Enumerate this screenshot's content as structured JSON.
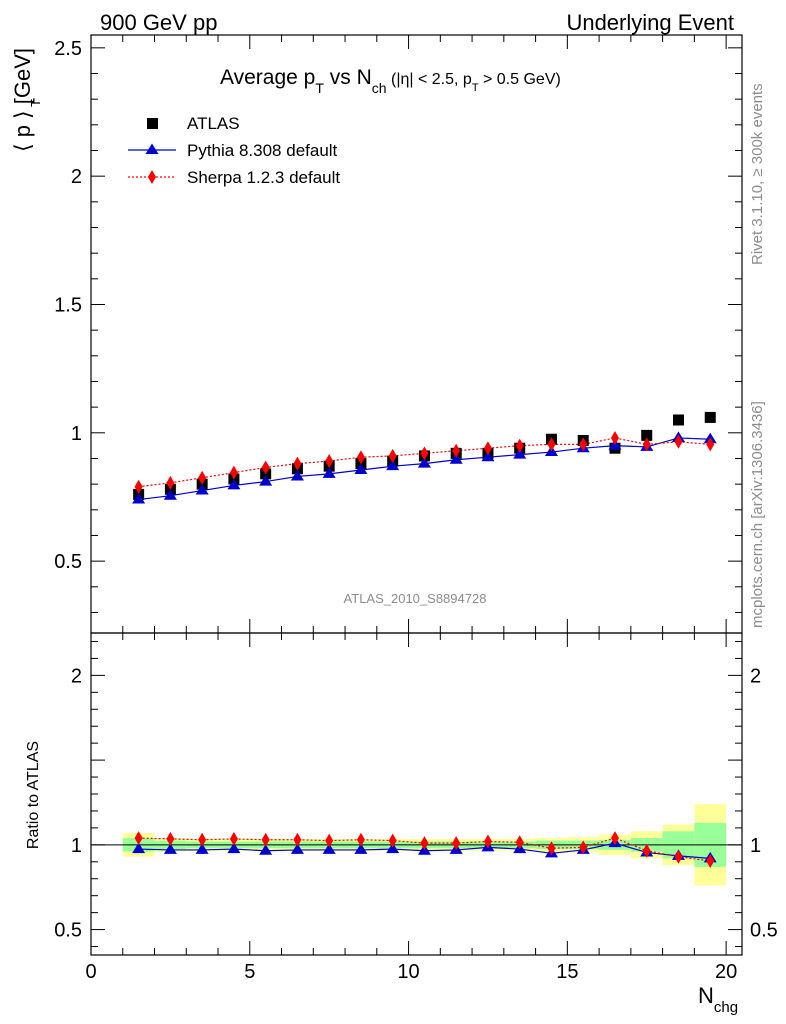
{
  "header": {
    "left": "900 GeV pp",
    "right": "Underlying Event"
  },
  "side_labels": {
    "rivet": "Rivet 3.1.10, ≥ 300k events",
    "mcplots": "mcplots.cern.ch [arXiv:1306.3436]"
  },
  "analysis_id": "ATLAS_2010_S8894728",
  "chart_data": [
    {
      "type": "scatter",
      "title": {
        "main_a": "Average p",
        "sub_a": "T",
        "main_b": " vs N",
        "sub_b": "ch",
        "small_a": " (|η| < 2.5, p",
        "small_sub": "T",
        "small_b": " > 0.5 GeV)"
      },
      "ylabel": "⟨ p  ⟩ [GeV]",
      "ylabel_sub": "T",
      "xlim": [
        0,
        20.5
      ],
      "ylim": [
        0.22,
        2.55
      ],
      "yticks": [
        0.5,
        1,
        1.5,
        2,
        2.5
      ],
      "ytick_labels": [
        "0.5",
        "1",
        "1.5",
        "2",
        "2.5"
      ],
      "legend_position": "top-left",
      "series": [
        {
          "name": "ATLAS",
          "color": "#000000",
          "marker": "square",
          "x": [
            1.5,
            2.5,
            3.5,
            4.5,
            5.5,
            6.5,
            7.5,
            8.5,
            9.5,
            10.5,
            11.5,
            12.5,
            13.5,
            14.5,
            15.5,
            16.5,
            17.5,
            18.5,
            19.5
          ],
          "y": [
            0.76,
            0.78,
            0.8,
            0.82,
            0.84,
            0.86,
            0.87,
            0.88,
            0.89,
            0.91,
            0.92,
            0.92,
            0.94,
            0.975,
            0.97,
            0.94,
            0.99,
            1.05,
            1.06
          ]
        },
        {
          "name": "Pythia 8.308 default",
          "color": "#0000cc",
          "marker": "triangle",
          "x": [
            1.5,
            2.5,
            3.5,
            4.5,
            5.5,
            6.5,
            7.5,
            8.5,
            9.5,
            10.5,
            11.5,
            12.5,
            13.5,
            14.5,
            15.5,
            16.5,
            17.5,
            18.5,
            19.5
          ],
          "y": [
            0.74,
            0.755,
            0.775,
            0.795,
            0.81,
            0.83,
            0.84,
            0.855,
            0.87,
            0.88,
            0.895,
            0.905,
            0.915,
            0.925,
            0.94,
            0.95,
            0.945,
            0.98,
            0.975
          ]
        },
        {
          "name": "Sherpa 1.2.3 default",
          "color": "#ff0000",
          "marker": "diamond",
          "x": [
            1.5,
            2.5,
            3.5,
            4.5,
            5.5,
            6.5,
            7.5,
            8.5,
            9.5,
            10.5,
            11.5,
            12.5,
            13.5,
            14.5,
            15.5,
            16.5,
            17.5,
            18.5,
            19.5
          ],
          "y": [
            0.79,
            0.805,
            0.825,
            0.845,
            0.865,
            0.88,
            0.89,
            0.905,
            0.91,
            0.92,
            0.93,
            0.94,
            0.95,
            0.955,
            0.955,
            0.98,
            0.955,
            0.965,
            0.955
          ]
        }
      ]
    },
    {
      "type": "scatter",
      "ylabel": "Ratio to ATLAS",
      "xlabel": "N",
      "xlabel_sub": "chg",
      "xlim": [
        0,
        20.5
      ],
      "ylim": [
        0.35,
        2.25
      ],
      "xticks": [
        0,
        5,
        10,
        15,
        20
      ],
      "xtick_labels": [
        "0",
        "5",
        "10",
        "15",
        "20"
      ],
      "yticks": [
        0.5,
        1,
        2
      ],
      "ytick_labels": [
        "0.5",
        "1",
        "2"
      ],
      "bands": {
        "x": [
          1.5,
          2.5,
          3.5,
          4.5,
          5.5,
          6.5,
          7.5,
          8.5,
          9.5,
          10.5,
          11.5,
          12.5,
          13.5,
          14.5,
          15.5,
          16.5,
          17.5,
          18.5,
          19.5
        ],
        "stat_halfwidth": [
          0.04,
          0.025,
          0.02,
          0.02,
          0.02,
          0.02,
          0.02,
          0.02,
          0.02,
          0.02,
          0.02,
          0.02,
          0.02,
          0.025,
          0.025,
          0.03,
          0.04,
          0.08,
          0.13
        ],
        "total_halfwidth": [
          0.07,
          0.04,
          0.035,
          0.035,
          0.035,
          0.035,
          0.035,
          0.035,
          0.035,
          0.035,
          0.035,
          0.035,
          0.035,
          0.04,
          0.045,
          0.06,
          0.08,
          0.12,
          0.24
        ],
        "stat_color": "#99ff99",
        "total_color": "#ffff99"
      },
      "series": [
        {
          "name": "Pythia 8.308 default",
          "color": "#0000cc",
          "marker": "triangle",
          "x": [
            1.5,
            2.5,
            3.5,
            4.5,
            5.5,
            6.5,
            7.5,
            8.5,
            9.5,
            10.5,
            11.5,
            12.5,
            13.5,
            14.5,
            15.5,
            16.5,
            17.5,
            18.5,
            19.5
          ],
          "y": [
            0.975,
            0.97,
            0.97,
            0.975,
            0.965,
            0.97,
            0.97,
            0.97,
            0.975,
            0.965,
            0.97,
            0.985,
            0.975,
            0.95,
            0.97,
            1.01,
            0.955,
            0.935,
            0.92
          ]
        },
        {
          "name": "Sherpa 1.2.3 default",
          "color": "#ff0000",
          "marker": "diamond",
          "x": [
            1.5,
            2.5,
            3.5,
            4.5,
            5.5,
            6.5,
            7.5,
            8.5,
            9.5,
            10.5,
            11.5,
            12.5,
            13.5,
            14.5,
            15.5,
            16.5,
            17.5,
            18.5,
            19.5
          ],
          "y": [
            1.04,
            1.035,
            1.03,
            1.035,
            1.03,
            1.03,
            1.025,
            1.03,
            1.025,
            1.01,
            1.01,
            1.02,
            1.015,
            0.98,
            0.985,
            1.04,
            0.965,
            0.93,
            0.905
          ]
        }
      ]
    }
  ]
}
